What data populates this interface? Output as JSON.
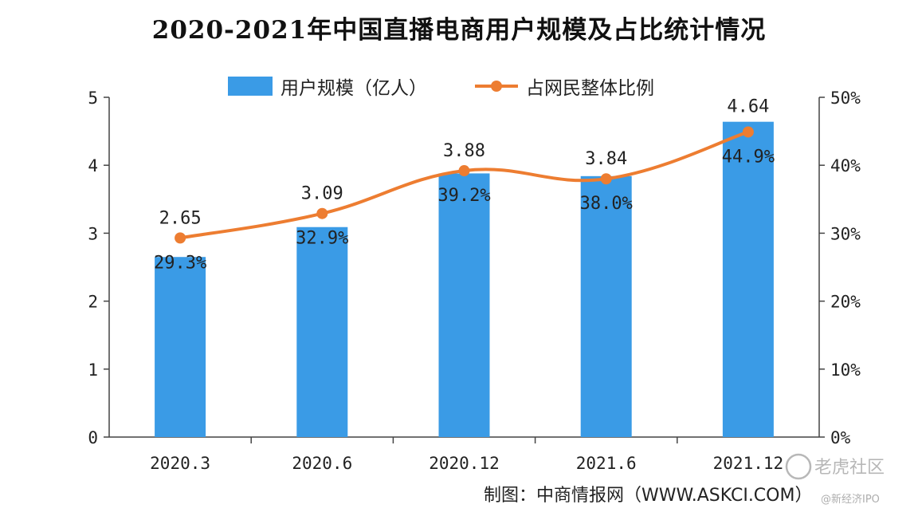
{
  "chart_data": {
    "type": "bar",
    "title": "2020-2021年中国直播电商用户规模及占比统计情况",
    "categories": [
      "2020.3",
      "2020.6",
      "2020.12",
      "2021.6",
      "2021.12"
    ],
    "series": [
      {
        "name": "用户规模（亿人）",
        "type": "bar",
        "axis": "left",
        "values": [
          2.65,
          3.09,
          3.88,
          3.84,
          4.64
        ],
        "labels": [
          "2.65",
          "3.09",
          "3.88",
          "3.84",
          "4.64"
        ],
        "color": "#3a9be6"
      },
      {
        "name": "占网民整体比例",
        "type": "line",
        "axis": "right",
        "values": [
          29.3,
          32.9,
          39.2,
          38.0,
          44.9
        ],
        "labels": [
          "29.3%",
          "32.9%",
          "39.2%",
          "38.0%",
          "44.9%"
        ],
        "color": "#ed7d31"
      }
    ],
    "y_left": {
      "range": [
        0,
        5
      ],
      "ticks": [
        "0",
        "1",
        "2",
        "3",
        "4",
        "5"
      ]
    },
    "y_right": {
      "range": [
        0,
        50
      ],
      "ticks": [
        "0%",
        "10%",
        "20%",
        "30%",
        "40%",
        "50%"
      ]
    },
    "legend_position": "top-center",
    "grid": false
  },
  "source": "制图：中商情报网（WWW.ASKCI.COM）",
  "watermarks": {
    "bottom_right": "老虎社区",
    "bottom_right_small": "@新经济IPO"
  }
}
